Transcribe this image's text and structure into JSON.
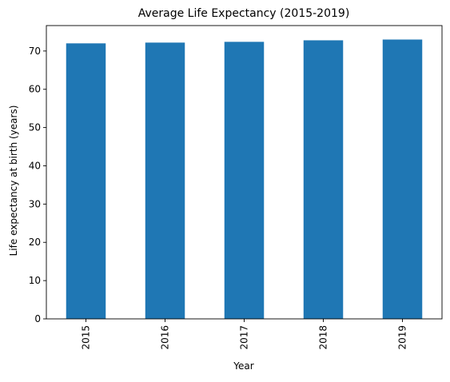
{
  "chart_data": {
    "type": "bar",
    "title": "Average Life Expectancy (2015-2019)",
    "xlabel": "Year",
    "ylabel": "Life expectancy at birth (years)",
    "categories": [
      "2015",
      "2016",
      "2017",
      "2018",
      "2019"
    ],
    "values": [
      72.0,
      72.2,
      72.4,
      72.8,
      73.0
    ],
    "ylim": [
      0,
      76.65
    ],
    "yticks": [
      0,
      10,
      20,
      30,
      40,
      50,
      60,
      70
    ],
    "ytick_labels": [
      "0",
      "10",
      "20",
      "30",
      "40",
      "50",
      "60",
      "70"
    ],
    "xtick_rotation": "vertical",
    "grid": false,
    "legend": "none",
    "bar_color": "#1f77b4"
  }
}
